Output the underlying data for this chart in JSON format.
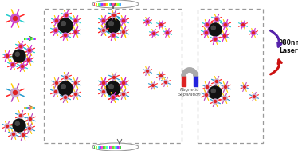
{
  "bg_color": "#ffffff",
  "box_color": "#999999",
  "magnet_text": "Magnetic\nSeparation",
  "laser_text": "980nm\nLaser",
  "arrow_purple": "#5522aa",
  "arrow_red": "#cc1111",
  "spike1": [
    "#ff2222",
    "#cc22cc",
    "#ffcc00",
    "#22cccc",
    "#ff2222",
    "#cc22cc",
    "#ffcc00",
    "#22cccc"
  ],
  "spike2": [
    "#ff2222",
    "#bb44bb",
    "#ffcc00",
    "#2299cc",
    "#ff2222",
    "#bb44bb",
    "#ffcc00",
    "#2299cc"
  ],
  "center1": "#cc55cc",
  "center2": "#ccaacc",
  "ring_color": "#dd2222",
  "bead_dark": "#111111",
  "bead_light": "#444444",
  "probe_top_colors": [
    "#ff4466",
    "#ff6644",
    "#ffdd00",
    "#88ff44",
    "#44ffaa",
    "#44aaff",
    "#8844ff",
    "#ff44aa",
    "#ff4466",
    "#ff6644",
    "#ffdd00",
    "#88ff44",
    "#44ffaa",
    "#44aaff",
    "#8844ff",
    "#ff44aa",
    "#ff4466",
    "#ff6644",
    "#ffdd00",
    "#88ff44",
    "#44ffaa",
    "#44aaff"
  ],
  "probe_bot_colors": [
    "#44cc44",
    "#66dd44",
    "#aaff44",
    "#44ffcc",
    "#44aaff",
    "#8844ff",
    "#ff44cc",
    "#44cc44",
    "#66dd44",
    "#aaff44",
    "#44ffcc",
    "#44aaff",
    "#8844ff",
    "#ff44cc",
    "#44cc44",
    "#66dd44",
    "#aaff44",
    "#44ffcc",
    "#44aaff",
    "#8844ff",
    "#ff44cc",
    "#44cc44"
  ]
}
